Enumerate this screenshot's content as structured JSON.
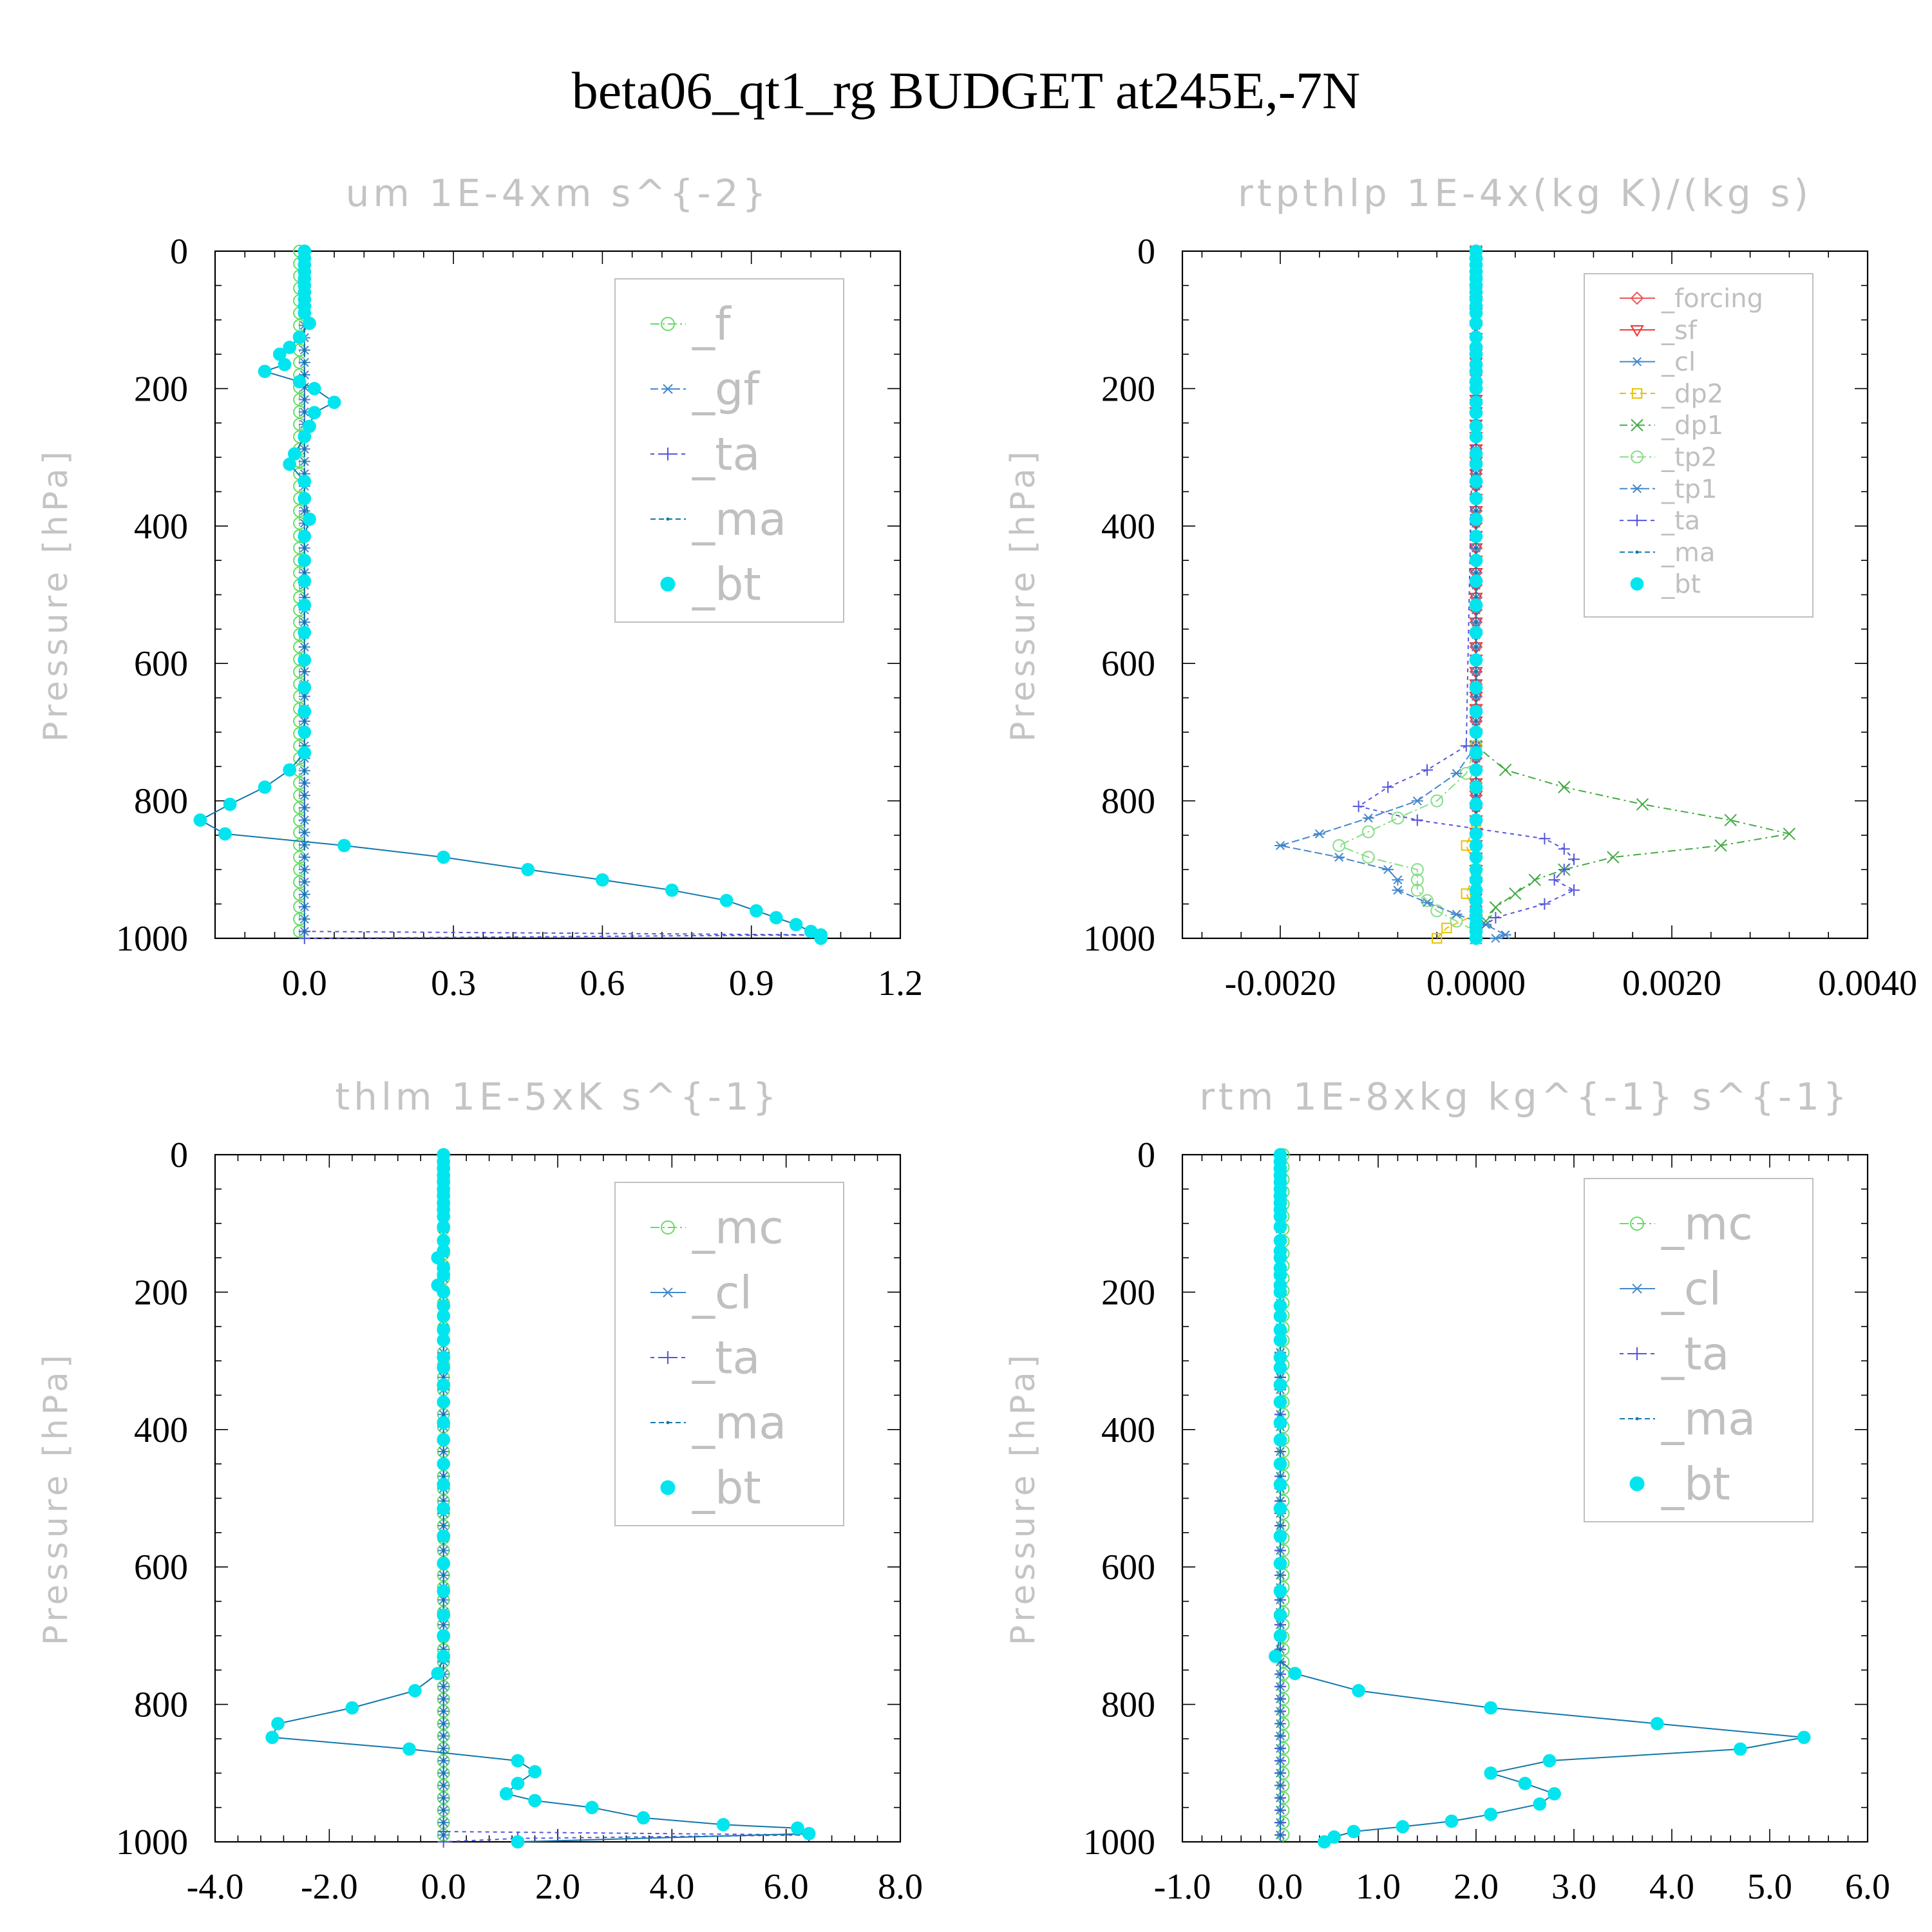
{
  "figure_title": "beta06_qt1_rg  BUDGET at245E,-7N",
  "colors": {
    "_f": "#66dd66",
    "_gf": "#4488cc",
    "_ta": "#5555dd",
    "_ma": "#1177aa",
    "_bt": "#00e5ee",
    "_forcing": "#ee5555",
    "_sf": "#ee3333",
    "_cl": "#4488cc",
    "_dp2": "#e8c000",
    "_dp1": "#44aa44",
    "_tp2": "#88dd88",
    "_tp1": "#4488cc",
    "_mc": "#66dd66"
  },
  "chart_data": [
    {
      "type": "line",
      "title": "um   1E-4xm s^{-2}",
      "ylabel": "Pressure [hPa]",
      "ylim": [
        1000,
        0
      ],
      "xlim": [
        -0.18,
        1.2
      ],
      "xticks": [
        "0.0",
        "0.3",
        "0.6",
        "0.9",
        "1.2"
      ],
      "xtick_values": [
        0.0,
        0.3,
        0.6,
        0.9,
        1.2
      ],
      "yticks": [
        "0",
        "200",
        "400",
        "600",
        "800",
        "1000"
      ],
      "legend": [
        "_f",
        "_gf",
        "_ta",
        "_ma",
        "_bt"
      ],
      "series": [
        {
          "name": "_f",
          "p": [
            0,
            1000
          ],
          "x": [
            -0.01,
            -0.01
          ]
        },
        {
          "name": "_gf",
          "p": [
            0,
            1000
          ],
          "x": [
            0.0,
            0.0
          ]
        },
        {
          "name": "_ta",
          "p": [
            0,
            990,
            995,
            1000
          ],
          "x": [
            0.0,
            0.0,
            1.04,
            0.0
          ]
        },
        {
          "name": "_ma",
          "p": [
            0,
            1000
          ],
          "x": [
            0.0,
            0.0
          ]
        },
        {
          "name": "_bt",
          "p": [
            0,
            10,
            20,
            30,
            40,
            50,
            60,
            70,
            80,
            90,
            105,
            125,
            140,
            150,
            165,
            175,
            190,
            200,
            220,
            235,
            255,
            270,
            295,
            310,
            335,
            360,
            390,
            415,
            450,
            480,
            515,
            555,
            595,
            635,
            670,
            700,
            730,
            755,
            780,
            805,
            828,
            848,
            865,
            882,
            900,
            915,
            930,
            945,
            960,
            970,
            980,
            990,
            995,
            1000
          ],
          "x": [
            0.0,
            0.0,
            0.0,
            0.0,
            0.0,
            0.0,
            0.0,
            0.0,
            0.0,
            0.0,
            0.01,
            -0.01,
            -0.03,
            -0.05,
            -0.04,
            -0.08,
            -0.01,
            0.02,
            0.06,
            0.02,
            0.01,
            0.0,
            -0.02,
            -0.03,
            0.0,
            0.0,
            0.01,
            0.0,
            0.0,
            0.0,
            0.0,
            0.0,
            0.0,
            0.0,
            0.0,
            0.0,
            0.0,
            -0.03,
            -0.08,
            -0.15,
            -0.21,
            -0.16,
            0.08,
            0.28,
            0.45,
            0.6,
            0.74,
            0.85,
            0.91,
            0.95,
            0.99,
            1.02,
            1.04,
            1.04
          ]
        }
      ]
    },
    {
      "type": "line",
      "title": "rtpthlp   1E-4x(kg K)/(kg s)",
      "ylabel": "Pressure [hPa]",
      "ylim": [
        1000,
        0
      ],
      "xlim": [
        -0.003,
        0.004
      ],
      "xticks": [
        "-0.0020",
        "0.0000",
        "0.0020",
        "0.0040"
      ],
      "xtick_values": [
        -0.002,
        0.0,
        0.002,
        0.004
      ],
      "yticks": [
        "0",
        "200",
        "400",
        "600",
        "800",
        "1000"
      ],
      "legend": [
        "_forcing",
        "_sf",
        "_cl",
        "_dp2",
        "_dp1",
        "_tp2",
        "_tp1",
        "_ta",
        "_ma",
        "_bt"
      ],
      "series": [
        {
          "name": "_forcing",
          "p": [
            0,
            1000
          ],
          "x": [
            0.0,
            0.0
          ]
        },
        {
          "name": "_sf",
          "p": [
            0,
            1000
          ],
          "x": [
            0.0,
            0.0
          ]
        },
        {
          "name": "_cl",
          "p": [
            0,
            1000
          ],
          "x": [
            0.0,
            0.0
          ]
        },
        {
          "name": "_dp2",
          "p": [
            0,
            720,
            780,
            830,
            865,
            900,
            935,
            965,
            985,
            1000
          ],
          "x": [
            0.0,
            0.0,
            0.0,
            0.0,
            -0.0001,
            0.0,
            -0.0001,
            0.0,
            -0.0003,
            -0.0004
          ]
        },
        {
          "name": "_dp1",
          "p": [
            0,
            720,
            755,
            780,
            805,
            828,
            848,
            865,
            882,
            900,
            915,
            935,
            955,
            975,
            990,
            1000
          ],
          "x": [
            0.0,
            0.0,
            0.0003,
            0.0009,
            0.0017,
            0.0026,
            0.0032,
            0.0025,
            0.0014,
            0.0009,
            0.0006,
            0.0004,
            0.0002,
            0.0001,
            0.0,
            0.0
          ]
        },
        {
          "name": "_tp2",
          "p": [
            0,
            720,
            760,
            800,
            825,
            845,
            865,
            882,
            900,
            915,
            930,
            945,
            960,
            975,
            990,
            1000
          ],
          "x": [
            0.0,
            0.0,
            -0.0001,
            -0.0004,
            -0.0008,
            -0.0011,
            -0.0014,
            -0.0011,
            -0.0006,
            -0.0006,
            -0.0006,
            -0.0005,
            -0.0004,
            -0.0002,
            0.0,
            0.0
          ]
        },
        {
          "name": "_tp1",
          "p": [
            0,
            720,
            760,
            800,
            825,
            848,
            865,
            882,
            900,
            915,
            930,
            948,
            965,
            980,
            995,
            1000
          ],
          "x": [
            0.0,
            0.0,
            -0.0002,
            -0.0006,
            -0.0011,
            -0.0016,
            -0.002,
            -0.0014,
            -0.0009,
            -0.0008,
            -0.0008,
            -0.0005,
            -0.0002,
            0.0001,
            0.0003,
            0.0002
          ]
        },
        {
          "name": "_ta",
          "p": [
            0,
            720,
            755,
            780,
            808,
            828,
            855,
            870,
            885,
            900,
            915,
            930,
            950,
            970,
            990,
            1000
          ],
          "x": [
            0.0,
            -0.0001,
            -0.0005,
            -0.0009,
            -0.0012,
            -0.0006,
            0.0007,
            0.0009,
            0.001,
            0.0009,
            0.0008,
            0.001,
            0.0007,
            0.0002,
            0.0,
            0.0
          ]
        },
        {
          "name": "_ma",
          "p": [
            0,
            1000
          ],
          "x": [
            0.0,
            0.0
          ]
        },
        {
          "name": "_bt",
          "p": [
            0,
            10,
            20,
            30,
            40,
            50,
            60,
            70,
            80,
            90,
            105,
            125,
            140,
            150,
            165,
            175,
            190,
            200,
            220,
            235,
            255,
            270,
            295,
            310,
            335,
            360,
            390,
            415,
            450,
            480,
            515,
            555,
            595,
            635,
            670,
            700,
            730,
            755,
            780,
            805,
            828,
            848,
            865,
            882,
            900,
            915,
            930,
            945,
            960,
            970,
            980,
            990,
            1000
          ],
          "x": [
            0.0,
            0.0,
            0.0,
            0.0,
            0.0,
            0.0,
            0.0,
            0.0,
            0.0,
            0.0,
            0.0,
            0.0,
            0.0,
            0.0,
            0.0,
            0.0,
            0.0,
            0.0,
            0.0,
            0.0,
            0.0,
            0.0,
            0.0,
            0.0,
            0.0,
            0.0,
            0.0,
            0.0,
            0.0,
            0.0,
            0.0,
            0.0,
            0.0,
            0.0,
            0.0,
            0.0,
            0.0,
            0.0,
            0.0,
            0.0,
            0.0,
            0.0,
            0.0,
            0.0,
            0.0,
            0.0,
            0.0,
            0.0,
            0.0,
            0.0,
            0.0,
            0.0,
            0.0
          ]
        }
      ]
    },
    {
      "type": "line",
      "title": "thlm   1E-5xK s^{-1}",
      "ylabel": "Pressure [hPa]",
      "ylim": [
        1000,
        0
      ],
      "xlim": [
        -4.0,
        8.0
      ],
      "xticks": [
        "-4.0",
        "-2.0",
        "0.0",
        "2.0",
        "4.0",
        "6.0",
        "8.0"
      ],
      "xtick_values": [
        -4.0,
        -2.0,
        0.0,
        2.0,
        4.0,
        6.0,
        8.0
      ],
      "yticks": [
        "0",
        "200",
        "400",
        "600",
        "800",
        "1000"
      ],
      "legend": [
        "_mc",
        "_cl",
        "_ta",
        "_ma",
        "_bt"
      ],
      "series": [
        {
          "name": "_mc",
          "p": [
            0,
            1000
          ],
          "x": [
            0.0,
            0.0
          ]
        },
        {
          "name": "_cl",
          "p": [
            0,
            1000
          ],
          "x": [
            0.0,
            0.0
          ]
        },
        {
          "name": "_ta",
          "p": [
            0,
            985,
            990,
            995,
            1000
          ],
          "x": [
            0.0,
            0.0,
            6.4,
            1.3,
            0.0
          ]
        },
        {
          "name": "_ma",
          "p": [
            0,
            1000
          ],
          "x": [
            0.0,
            0.0
          ]
        },
        {
          "name": "_bt",
          "p": [
            0,
            10,
            20,
            30,
            40,
            50,
            60,
            70,
            80,
            90,
            105,
            125,
            140,
            150,
            165,
            175,
            190,
            200,
            220,
            235,
            255,
            270,
            295,
            310,
            335,
            360,
            390,
            415,
            450,
            480,
            515,
            555,
            595,
            635,
            670,
            700,
            730,
            755,
            780,
            805,
            828,
            848,
            865,
            882,
            898,
            915,
            930,
            940,
            950,
            965,
            975,
            980,
            988,
            1000
          ],
          "x": [
            0.0,
            0.0,
            0.0,
            0.0,
            0.0,
            0.0,
            0.0,
            0.0,
            0.0,
            0.0,
            0.0,
            0.0,
            0.0,
            -0.1,
            0.0,
            0.0,
            -0.1,
            0.0,
            0.0,
            0.0,
            0.0,
            0.0,
            0.0,
            0.0,
            0.0,
            0.0,
            0.0,
            0.0,
            0.0,
            0.0,
            0.0,
            0.0,
            0.0,
            0.0,
            0.0,
            0.0,
            0.0,
            -0.1,
            -0.5,
            -1.6,
            -2.9,
            -3.0,
            -0.6,
            1.3,
            1.6,
            1.3,
            1.1,
            1.6,
            2.6,
            3.5,
            4.9,
            6.2,
            6.4,
            1.3
          ]
        }
      ]
    },
    {
      "type": "line",
      "title": "rtm   1E-8xkg kg^{-1} s^{-1}",
      "ylabel": "Pressure [hPa]",
      "ylim": [
        1000,
        0
      ],
      "xlim": [
        -1.0,
        6.0
      ],
      "xticks": [
        "-1.0",
        "0.0",
        "1.0",
        "2.0",
        "3.0",
        "4.0",
        "5.0",
        "6.0"
      ],
      "xtick_values": [
        -1.0,
        0.0,
        1.0,
        2.0,
        3.0,
        4.0,
        5.0,
        6.0
      ],
      "yticks": [
        "0",
        "200",
        "400",
        "600",
        "800",
        "1000"
      ],
      "legend": [
        "_mc",
        "_cl",
        "_ta",
        "_ma",
        "_bt"
      ],
      "series": [
        {
          "name": "_mc",
          "p": [
            0,
            1000
          ],
          "x": [
            0.03,
            0.03
          ]
        },
        {
          "name": "_cl",
          "p": [
            0,
            1000
          ],
          "x": [
            0.0,
            0.0
          ]
        },
        {
          "name": "_ta",
          "p": [
            0,
            1000
          ],
          "x": [
            0.0,
            0.0
          ]
        },
        {
          "name": "_ma",
          "p": [
            0,
            1000
          ],
          "x": [
            0.0,
            0.0
          ]
        },
        {
          "name": "_bt",
          "p": [
            0,
            10,
            20,
            30,
            40,
            50,
            60,
            70,
            80,
            90,
            105,
            125,
            140,
            150,
            165,
            175,
            190,
            200,
            220,
            235,
            255,
            270,
            295,
            310,
            335,
            360,
            390,
            415,
            450,
            480,
            515,
            555,
            595,
            635,
            670,
            700,
            730,
            755,
            780,
            805,
            828,
            848,
            865,
            882,
            900,
            915,
            930,
            945,
            960,
            970,
            978,
            985,
            993,
            1000
          ],
          "x": [
            0.0,
            0.0,
            0.0,
            0.0,
            0.0,
            0.0,
            0.0,
            0.0,
            0.0,
            0.0,
            0.0,
            0.0,
            0.0,
            0.0,
            0.0,
            0.0,
            0.0,
            0.0,
            0.0,
            0.0,
            0.0,
            0.0,
            0.0,
            0.0,
            0.0,
            0.0,
            0.0,
            0.0,
            0.0,
            0.0,
            0.0,
            0.0,
            0.0,
            0.0,
            0.0,
            0.0,
            -0.05,
            0.15,
            0.8,
            2.15,
            3.85,
            5.35,
            4.7,
            2.75,
            2.15,
            2.5,
            2.8,
            2.65,
            2.15,
            1.75,
            1.25,
            0.75,
            0.55,
            0.45
          ]
        }
      ]
    }
  ]
}
